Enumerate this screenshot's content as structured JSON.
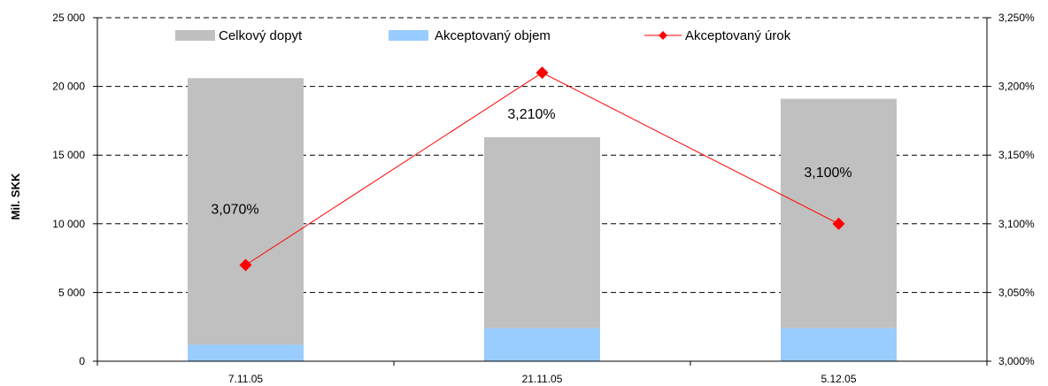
{
  "chart_data": {
    "type": "bar",
    "categories": [
      "7.11.05",
      "21.11.05",
      "5.12.05"
    ],
    "series": [
      {
        "name": "Celkový dopyt",
        "type": "bar",
        "axis": "left",
        "color": "#c0c0c0",
        "values": [
          20600,
          16300,
          19100
        ]
      },
      {
        "name": "Akceptovaný objem",
        "type": "bar",
        "axis": "left",
        "color": "#99ccff",
        "values": [
          1200,
          2400,
          2400
        ]
      },
      {
        "name": "Akceptovaný úrok",
        "type": "line",
        "axis": "right",
        "color": "#ff0000",
        "marker": "diamond",
        "values": [
          3.07,
          3.21,
          3.1
        ]
      }
    ],
    "data_labels": [
      "3,070%",
      "3,210%",
      "3,100%"
    ],
    "ylabel": "Mil. SKK",
    "ylim": [
      0,
      25000
    ],
    "y_ticks": [
      "0",
      "5 000",
      "10 000",
      "15 000",
      "20 000",
      "25 000"
    ],
    "y2lim": [
      3.0,
      3.25
    ],
    "y2_ticks": [
      "3,000%",
      "3,050%",
      "3,100%",
      "3,150%",
      "3,200%",
      "3,250%"
    ],
    "grid": "dashed-horizontal",
    "legend_position": "top"
  }
}
